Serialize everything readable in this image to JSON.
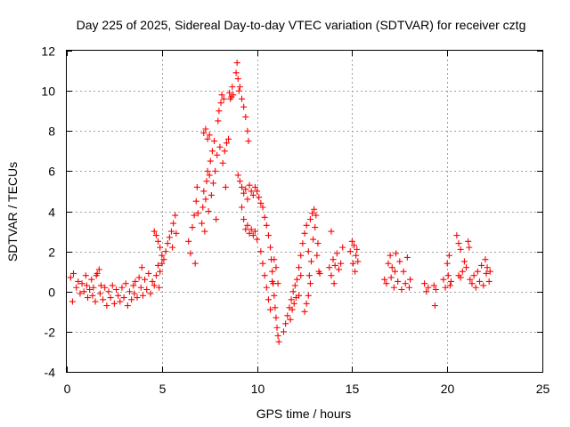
{
  "chart_data": {
    "type": "scatter",
    "title": "Day 225 of 2025, Sidereal Day-to-day VTEC variation (SDTVAR) for receiver cztg",
    "xlabel": "GPS time / hours",
    "ylabel": "SDTVAR / TECUs",
    "xlim": [
      0,
      25
    ],
    "ylim": [
      -4,
      12
    ],
    "xticks": [
      0,
      5,
      10,
      15,
      20,
      25
    ],
    "yticks": [
      -4,
      -2,
      0,
      2,
      4,
      6,
      8,
      10,
      12
    ],
    "grid": true,
    "marker": "+",
    "color": "#ff0000",
    "series": [
      {
        "name": "SDTVAR",
        "points": [
          [
            0.2,
            0.7
          ],
          [
            0.3,
            -0.5
          ],
          [
            0.35,
            0.9
          ],
          [
            0.5,
            0.2
          ],
          [
            0.6,
            0.5
          ],
          [
            0.7,
            -0.1
          ],
          [
            0.8,
            0.4
          ],
          [
            0.9,
            0.0
          ],
          [
            1.0,
            0.8
          ],
          [
            1.05,
            0.3
          ],
          [
            1.1,
            -0.3
          ],
          [
            1.2,
            0.1
          ],
          [
            1.3,
            0.6
          ],
          [
            1.35,
            -0.2
          ],
          [
            1.4,
            0.2
          ],
          [
            1.5,
            -0.5
          ],
          [
            1.55,
            0.8
          ],
          [
            1.6,
            0.9
          ],
          [
            1.7,
            1.1
          ],
          [
            1.75,
            -0.1
          ],
          [
            1.8,
            0.3
          ],
          [
            1.9,
            -0.4
          ],
          [
            2.0,
            0.2
          ],
          [
            2.1,
            -0.7
          ],
          [
            2.2,
            0.0
          ],
          [
            2.3,
            -0.3
          ],
          [
            2.4,
            0.3
          ],
          [
            2.5,
            -0.6
          ],
          [
            2.6,
            0.1
          ],
          [
            2.7,
            -0.2
          ],
          [
            2.8,
            -0.5
          ],
          [
            2.9,
            0.2
          ],
          [
            3.0,
            -0.3
          ],
          [
            3.1,
            0.4
          ],
          [
            3.2,
            -0.7
          ],
          [
            3.3,
            0.0
          ],
          [
            3.4,
            -0.4
          ],
          [
            3.5,
            0.3
          ],
          [
            3.55,
            -0.1
          ],
          [
            3.6,
            0.5
          ],
          [
            3.7,
            -0.3
          ],
          [
            3.8,
            0.7
          ],
          [
            3.9,
            0.2
          ],
          [
            3.95,
            1.2
          ],
          [
            4.0,
            -0.2
          ],
          [
            4.1,
            0.6
          ],
          [
            4.2,
            0.1
          ],
          [
            4.3,
            0.9
          ],
          [
            4.4,
            -0.1
          ],
          [
            4.5,
            0.5
          ],
          [
            4.6,
            0.3
          ],
          [
            4.7,
            0.8
          ],
          [
            4.8,
            1.3
          ],
          [
            4.85,
            0.2
          ],
          [
            4.9,
            1.0
          ],
          [
            5.0,
            1.4
          ],
          [
            4.6,
            3.0
          ],
          [
            4.7,
            2.8
          ],
          [
            4.8,
            2.5
          ],
          [
            4.9,
            2.2
          ],
          [
            5.0,
            1.8
          ],
          [
            5.1,
            1.6
          ],
          [
            5.2,
            2.0
          ],
          [
            5.3,
            2.4
          ],
          [
            5.4,
            2.7
          ],
          [
            5.5,
            3.0
          ],
          [
            5.55,
            2.2
          ],
          [
            5.6,
            3.4
          ],
          [
            5.7,
            3.8
          ],
          [
            5.75,
            2.9
          ],
          [
            6.4,
            2.5
          ],
          [
            6.5,
            1.9
          ],
          [
            6.6,
            3.2
          ],
          [
            6.7,
            3.8
          ],
          [
            6.75,
            1.4
          ],
          [
            6.8,
            4.5
          ],
          [
            6.85,
            5.2
          ],
          [
            6.9,
            3.9
          ],
          [
            7.1,
            3.4
          ],
          [
            7.15,
            4.2
          ],
          [
            7.2,
            5.0
          ],
          [
            7.25,
            3.0
          ],
          [
            7.3,
            4.6
          ],
          [
            7.35,
            5.5
          ],
          [
            7.4,
            6.0
          ],
          [
            7.45,
            4.0
          ],
          [
            7.5,
            5.8
          ],
          [
            7.55,
            6.5
          ],
          [
            7.6,
            4.8
          ],
          [
            7.65,
            7.0
          ],
          [
            7.7,
            5.4
          ],
          [
            7.75,
            7.5
          ],
          [
            7.8,
            6.0
          ],
          [
            7.85,
            3.6
          ],
          [
            7.9,
            6.8
          ],
          [
            7.95,
            8.5
          ],
          [
            8.0,
            9.0
          ],
          [
            8.05,
            7.2
          ],
          [
            8.1,
            9.4
          ],
          [
            8.15,
            9.8
          ],
          [
            8.2,
            6.4
          ],
          [
            8.25,
            9.6
          ],
          [
            8.3,
            7.0
          ],
          [
            8.35,
            5.2
          ],
          [
            7.2,
            7.9
          ],
          [
            7.3,
            8.1
          ],
          [
            7.4,
            7.6
          ],
          [
            7.5,
            7.8
          ],
          [
            8.4,
            7.4
          ],
          [
            8.5,
            7.6
          ],
          [
            8.55,
            9.9
          ],
          [
            8.6,
            9.6
          ],
          [
            8.65,
            9.7
          ],
          [
            8.7,
            10.2
          ],
          [
            8.75,
            9.8
          ],
          [
            8.9,
            10.9
          ],
          [
            8.95,
            11.4
          ],
          [
            9.0,
            10.6
          ],
          [
            9.05,
            10.0
          ],
          [
            9.1,
            10.2
          ],
          [
            9.2,
            9.6
          ],
          [
            9.3,
            9.2
          ],
          [
            9.4,
            8.7
          ],
          [
            9.5,
            8.0
          ],
          [
            9.55,
            7.5
          ],
          [
            9.0,
            5.8
          ],
          [
            9.1,
            5.5
          ],
          [
            9.2,
            5.2
          ],
          [
            9.3,
            4.9
          ],
          [
            9.4,
            5.1
          ],
          [
            9.5,
            4.6
          ],
          [
            9.6,
            5.3
          ],
          [
            9.7,
            5.0
          ],
          [
            9.8,
            4.8
          ],
          [
            9.9,
            5.2
          ],
          [
            10.0,
            5.0
          ],
          [
            10.1,
            4.7
          ],
          [
            10.2,
            4.4
          ],
          [
            9.2,
            4.2
          ],
          [
            9.3,
            3.6
          ],
          [
            9.4,
            3.1
          ],
          [
            9.5,
            3.3
          ],
          [
            9.6,
            2.9
          ],
          [
            9.7,
            3.1
          ],
          [
            9.8,
            2.8
          ],
          [
            9.9,
            3.0
          ],
          [
            10.0,
            2.6
          ],
          [
            10.3,
            4.2
          ],
          [
            10.4,
            3.7
          ],
          [
            10.5,
            3.3
          ],
          [
            10.6,
            2.8
          ],
          [
            10.7,
            2.2
          ],
          [
            10.75,
            1.6
          ],
          [
            10.8,
            1.0
          ],
          [
            10.85,
            0.4
          ],
          [
            10.9,
            -0.2
          ],
          [
            10.95,
            -0.8
          ],
          [
            11.0,
            -1.3
          ],
          [
            11.05,
            -1.8
          ],
          [
            11.1,
            -2.2
          ],
          [
            11.15,
            -2.5
          ],
          [
            10.2,
            2.0
          ],
          [
            10.3,
            1.4
          ],
          [
            10.4,
            0.8
          ],
          [
            10.5,
            0.2
          ],
          [
            10.6,
            -0.4
          ],
          [
            10.7,
            -0.9
          ],
          [
            10.8,
            0.5
          ],
          [
            10.9,
            1.6
          ],
          [
            11.0,
            1.2
          ],
          [
            11.1,
            0.4
          ],
          [
            11.4,
            -2.0
          ],
          [
            11.5,
            -1.6
          ],
          [
            11.6,
            -1.2
          ],
          [
            11.7,
            -0.8
          ],
          [
            11.75,
            -1.4
          ],
          [
            11.8,
            -0.4
          ],
          [
            11.85,
            -0.9
          ],
          [
            11.9,
            0.0
          ],
          [
            11.95,
            -0.6
          ],
          [
            12.0,
            0.3
          ],
          [
            12.05,
            -0.3
          ],
          [
            12.1,
            0.6
          ],
          [
            12.2,
            -0.2
          ],
          [
            12.3,
            0.8
          ],
          [
            12.2,
            1.2
          ],
          [
            12.3,
            1.8
          ],
          [
            12.4,
            2.4
          ],
          [
            12.5,
            2.9
          ],
          [
            12.6,
            3.3
          ],
          [
            12.7,
            2.0
          ],
          [
            12.75,
            0.8
          ],
          [
            12.8,
            3.6
          ],
          [
            12.85,
            1.5
          ],
          [
            12.9,
            3.9
          ],
          [
            12.95,
            2.6
          ],
          [
            13.0,
            4.1
          ],
          [
            13.05,
            3.2
          ],
          [
            13.1,
            3.8
          ],
          [
            13.15,
            1.8
          ],
          [
            13.2,
            2.4
          ],
          [
            13.25,
            1.0
          ],
          [
            13.3,
            0.9
          ],
          [
            12.5,
            -1.0
          ],
          [
            12.6,
            -0.6
          ],
          [
            12.7,
            -0.2
          ],
          [
            12.8,
            0.4
          ],
          [
            13.8,
            1.2
          ],
          [
            13.9,
            0.8
          ],
          [
            14.0,
            1.6
          ],
          [
            14.05,
            0.4
          ],
          [
            14.1,
            1.3
          ],
          [
            14.2,
            1.9
          ],
          [
            14.3,
            1.1
          ],
          [
            14.4,
            1.4
          ],
          [
            14.5,
            2.2
          ],
          [
            13.9,
            3.0
          ],
          [
            14.9,
            2.0
          ],
          [
            15.0,
            2.5
          ],
          [
            15.05,
            1.4
          ],
          [
            15.1,
            2.3
          ],
          [
            15.15,
            1.0
          ],
          [
            15.2,
            1.8
          ],
          [
            15.25,
            2.1
          ],
          [
            15.3,
            1.5
          ],
          [
            16.7,
            0.6
          ],
          [
            16.8,
            0.4
          ],
          [
            16.9,
            1.4
          ],
          [
            17.0,
            1.8
          ],
          [
            17.05,
            0.7
          ],
          [
            17.1,
            1.2
          ],
          [
            17.2,
            0.2
          ],
          [
            17.25,
            1.0
          ],
          [
            17.3,
            1.9
          ],
          [
            17.4,
            0.5
          ],
          [
            17.5,
            1.5
          ],
          [
            17.6,
            0.1
          ],
          [
            17.7,
            1.0
          ],
          [
            17.8,
            0.4
          ],
          [
            17.9,
            1.7
          ],
          [
            18.0,
            0.2
          ],
          [
            18.05,
            0.6
          ],
          [
            18.8,
            0.4
          ],
          [
            18.9,
            0.0
          ],
          [
            19.0,
            0.2
          ],
          [
            19.3,
            0.3
          ],
          [
            19.35,
            -0.7
          ],
          [
            19.4,
            0.1
          ],
          [
            19.8,
            0.6
          ],
          [
            19.9,
            0.2
          ],
          [
            20.0,
            1.4
          ],
          [
            20.05,
            0.8
          ],
          [
            20.1,
            1.8
          ],
          [
            20.15,
            0.3
          ],
          [
            20.2,
            0.5
          ],
          [
            20.5,
            2.8
          ],
          [
            20.6,
            2.4
          ],
          [
            20.7,
            2.1
          ],
          [
            20.8,
            1.0
          ],
          [
            20.6,
            0.8
          ],
          [
            20.7,
            0.7
          ],
          [
            20.9,
            1.5
          ],
          [
            21.0,
            1.2
          ],
          [
            21.1,
            2.5
          ],
          [
            21.15,
            2.2
          ],
          [
            21.2,
            0.6
          ],
          [
            21.3,
            0.4
          ],
          [
            21.4,
            0.8
          ],
          [
            21.5,
            0.2
          ],
          [
            21.6,
            1.0
          ],
          [
            21.7,
            0.5
          ],
          [
            21.8,
            1.3
          ],
          [
            21.9,
            0.3
          ],
          [
            22.0,
            1.6
          ],
          [
            22.05,
            0.9
          ],
          [
            22.1,
            1.2
          ],
          [
            22.2,
            0.5
          ],
          [
            22.25,
            1.0
          ]
        ]
      }
    ]
  }
}
